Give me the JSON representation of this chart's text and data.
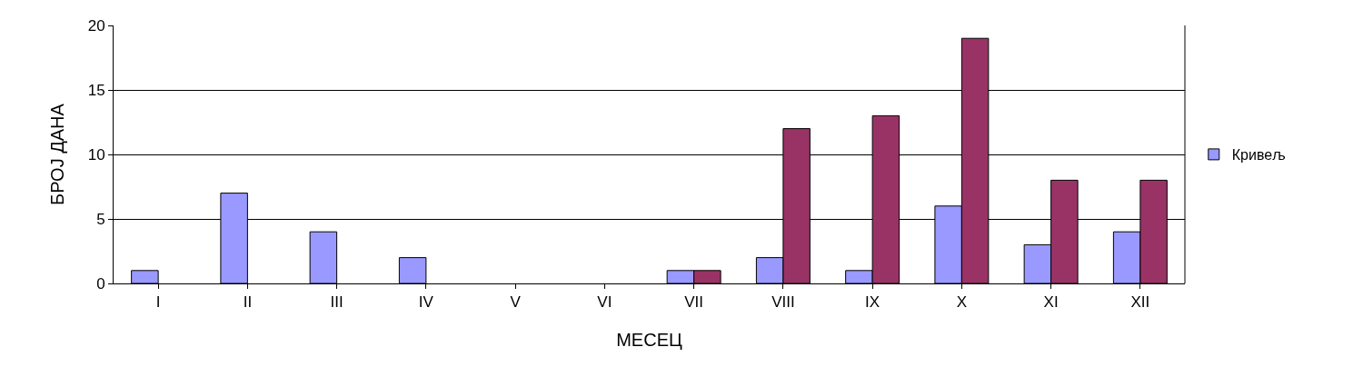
{
  "chart_data": {
    "type": "bar",
    "xlabel": "МЕСЕЦ",
    "ylabel": "БРОЈ ДАНА",
    "categories": [
      "I",
      "II",
      "III",
      "IV",
      "V",
      "VI",
      "VII",
      "VIII",
      "IX",
      "X",
      "XI",
      "XII"
    ],
    "series": [
      {
        "name": "Кривељ",
        "color": "#9999ff",
        "values": [
          1,
          7,
          4,
          2,
          0,
          0,
          1,
          2,
          1,
          6,
          3,
          4
        ]
      },
      {
        "color": "#993366",
        "values": [
          0,
          0,
          0,
          0,
          0,
          0,
          1,
          12,
          13,
          19,
          8,
          8
        ]
      }
    ],
    "ylim": [
      0,
      20
    ],
    "yticks": [
      0,
      5,
      10,
      15,
      20
    ],
    "grid": "y",
    "legend": "right"
  }
}
